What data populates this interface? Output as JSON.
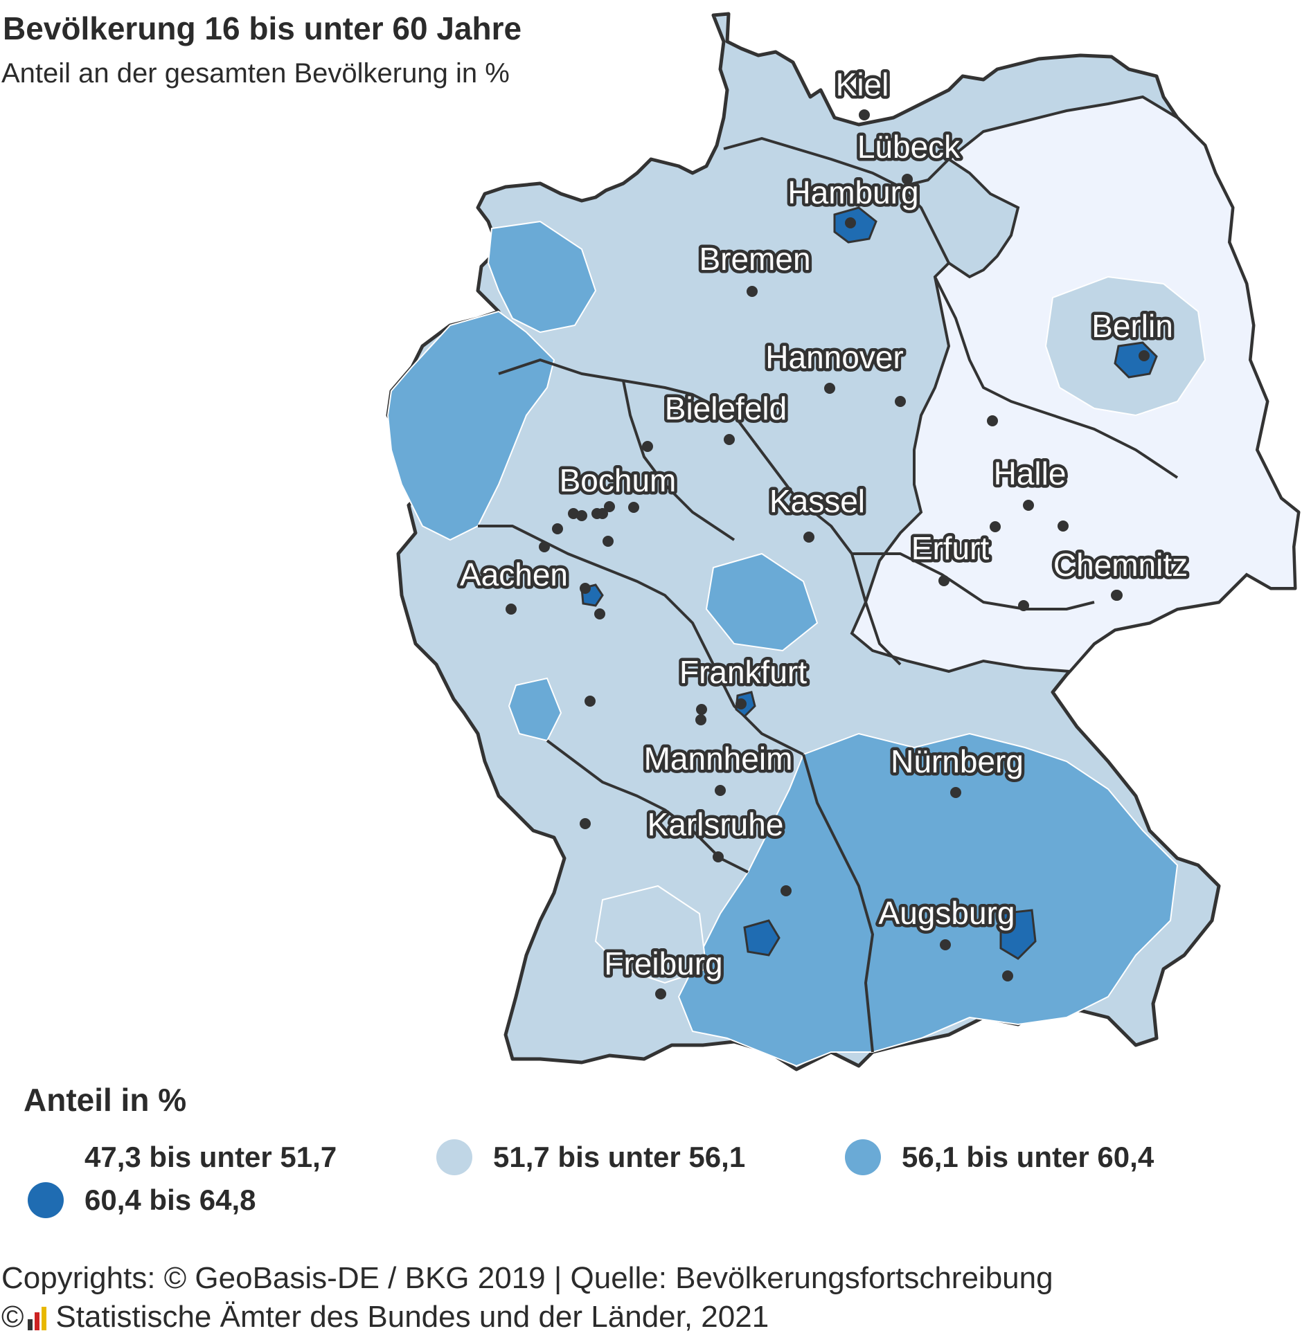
{
  "title": "Bevölkerung 16 bis unter 60 Jahre",
  "subtitle": "Anteil an der gesamten Bevölkerung in %",
  "colors": {
    "class1": "#eef3fd",
    "class2": "#c0d6e6",
    "class3": "#6aaad6",
    "class4": "#1f6cb2",
    "border": "#333333",
    "district_border": "#ffffff"
  },
  "cities": [
    {
      "name": "Kiel"
    },
    {
      "name": "Lübeck"
    },
    {
      "name": "Hamburg"
    },
    {
      "name": "Bremen"
    },
    {
      "name": "Berlin"
    },
    {
      "name": "Hannover"
    },
    {
      "name": "Bielefeld"
    },
    {
      "name": "Bochum"
    },
    {
      "name": "Halle"
    },
    {
      "name": "Kassel"
    },
    {
      "name": "Erfurt"
    },
    {
      "name": "Chemnitz"
    },
    {
      "name": "Aachen"
    },
    {
      "name": "Frankfurt"
    },
    {
      "name": "Mannheim"
    },
    {
      "name": "Nürnberg"
    },
    {
      "name": "Karlsruhe"
    },
    {
      "name": "Augsburg"
    },
    {
      "name": "Freiburg"
    }
  ],
  "legend": {
    "title": "Anteil in %",
    "items": [
      {
        "label": "47,3 bis unter 51,7",
        "color": "#ffffff"
      },
      {
        "label": "51,7 bis unter 56,1",
        "color": "#c0d6e6"
      },
      {
        "label": "56,1 bis unter 60,4",
        "color": "#6aaad6"
      },
      {
        "label": "60,4 bis 64,8",
        "color": "#1f6cb2"
      }
    ]
  },
  "footer": {
    "line1": "Copyrights: © GeoBasis-DE / BKG 2019 | Quelle: Bevölkerungsfortschreibung",
    "copyright_symbol": "©",
    "line2": "Statistische Ämter des Bundes und der Länder, 2021"
  }
}
